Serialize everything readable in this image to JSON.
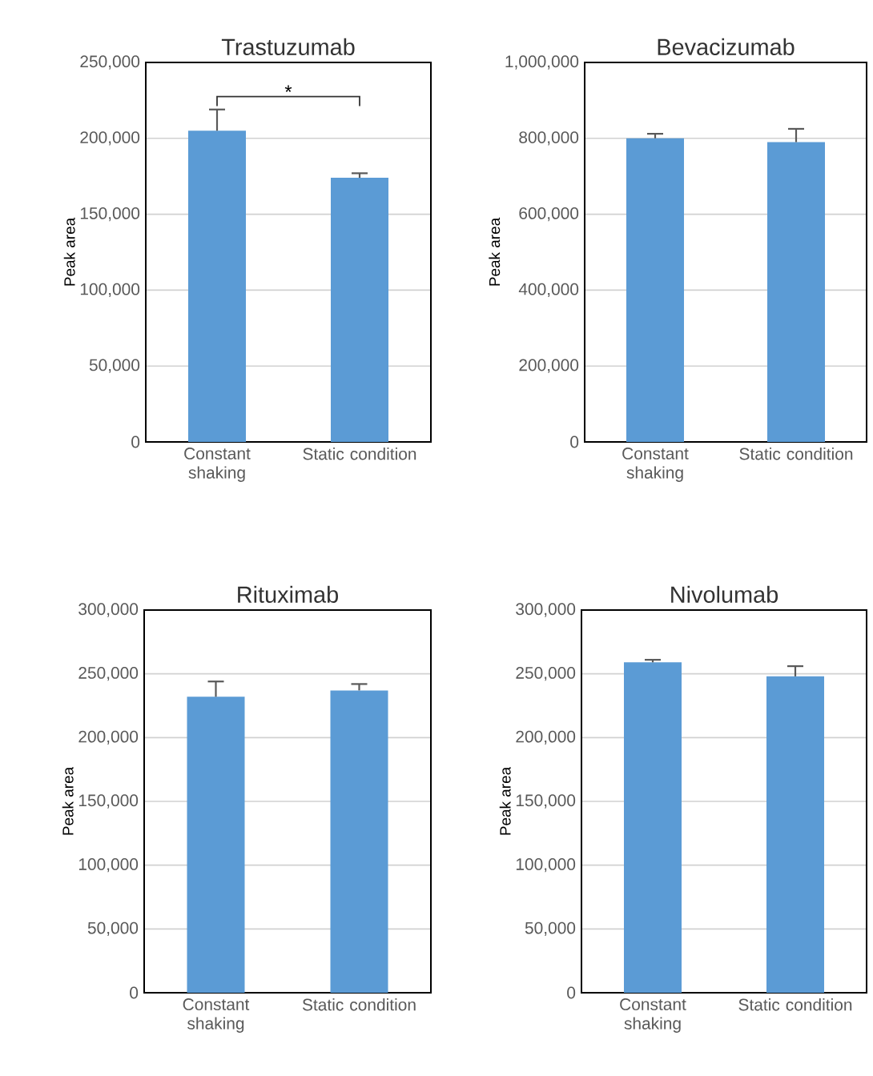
{
  "chart_data": [
    {
      "type": "bar",
      "title": "Trastuzumab",
      "ylabel": "Peak area",
      "categories": [
        "Constant shaking",
        "Static condition"
      ],
      "values": [
        205000,
        174000
      ],
      "errors": [
        14000,
        3000
      ],
      "color": "#5b9bd5",
      "ylim": [
        0,
        250000
      ],
      "yticks": [
        {
          "value": 0,
          "label": "0"
        },
        {
          "value": 50000,
          "label": "50,000"
        },
        {
          "value": 100000,
          "label": "100,000"
        },
        {
          "value": 150000,
          "label": "150,000"
        },
        {
          "value": 200000,
          "label": "200,000"
        },
        {
          "value": 250000,
          "label": "250,000"
        }
      ],
      "grid": "y",
      "annotations": [
        "*"
      ]
    },
    {
      "type": "bar",
      "title": "Bevacizumab",
      "ylabel": "Peak area",
      "categories": [
        "Constant shaking",
        "Static condition"
      ],
      "values": [
        800000,
        790000
      ],
      "errors": [
        12000,
        35000
      ],
      "color": "#5b9bd5",
      "ylim": [
        0,
        1000000
      ],
      "yticks": [
        {
          "value": 0,
          "label": "0"
        },
        {
          "value": 200000,
          "label": "200,000"
        },
        {
          "value": 400000,
          "label": "400,000"
        },
        {
          "value": 600000,
          "label": "600,000"
        },
        {
          "value": 800000,
          "label": "800,000"
        },
        {
          "value": 1000000,
          "label": "1,000,000"
        }
      ],
      "grid": "y"
    },
    {
      "type": "bar",
      "title": "Rituximab",
      "ylabel": "Peak area",
      "categories": [
        "Constant shaking",
        "Static condition"
      ],
      "values": [
        232000,
        237000
      ],
      "errors": [
        12000,
        5000
      ],
      "color": "#5b9bd5",
      "ylim": [
        0,
        300000
      ],
      "yticks": [
        {
          "value": 0,
          "label": "0"
        },
        {
          "value": 50000,
          "label": "50,000"
        },
        {
          "value": 100000,
          "label": "100,000"
        },
        {
          "value": 150000,
          "label": "150,000"
        },
        {
          "value": 200000,
          "label": "200,000"
        },
        {
          "value": 250000,
          "label": "250,000"
        },
        {
          "value": 300000,
          "label": "300,000"
        }
      ],
      "grid": "y"
    },
    {
      "type": "bar",
      "title": "Nivolumab",
      "ylabel": "Peak area",
      "categories": [
        "Constant shaking",
        "Static condition"
      ],
      "values": [
        259000,
        248000
      ],
      "errors": [
        2000,
        8000
      ],
      "color": "#5b9bd5",
      "ylim": [
        0,
        300000
      ],
      "yticks": [
        {
          "value": 0,
          "label": "0"
        },
        {
          "value": 50000,
          "label": "50,000"
        },
        {
          "value": 100000,
          "label": "100,000"
        },
        {
          "value": 150000,
          "label": "150,000"
        },
        {
          "value": 200000,
          "label": "200,000"
        },
        {
          "value": 250000,
          "label": "250,000"
        },
        {
          "value": 300000,
          "label": "300,000"
        }
      ],
      "grid": "y"
    }
  ]
}
